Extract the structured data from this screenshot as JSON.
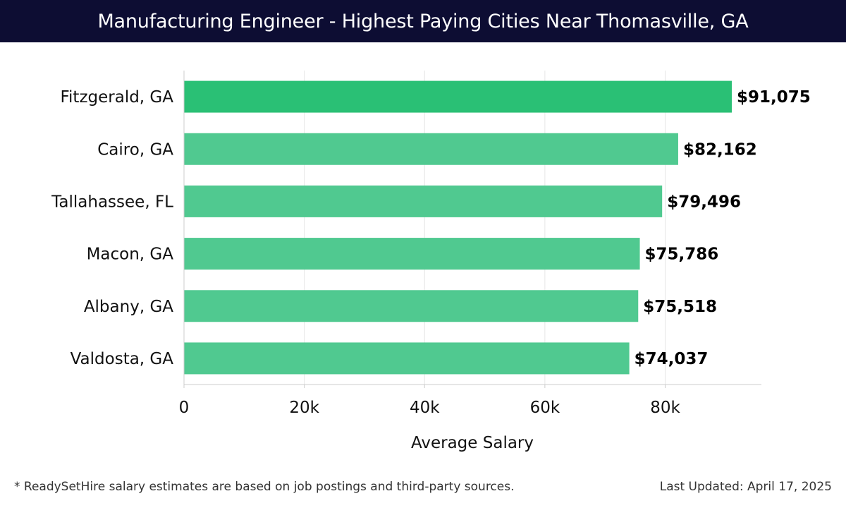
{
  "header": {
    "title": "Manufacturing Engineer - Highest Paying Cities Near Thomasville, GA"
  },
  "chart_data": {
    "type": "bar",
    "orientation": "horizontal",
    "title": "Manufacturing Engineer - Highest Paying Cities Near Thomasville, GA",
    "xlabel": "Average Salary",
    "ylabel": "",
    "categories": [
      "Fitzgerald, GA",
      "Cairo, GA",
      "Tallahassee, FL",
      "Macon, GA",
      "Albany, GA",
      "Valdosta, GA"
    ],
    "values": [
      91075,
      82162,
      79496,
      75786,
      75518,
      74037
    ],
    "value_labels": [
      "$91,075",
      "$82,162",
      "$79,496",
      "$75,786",
      "$75,518",
      "$74,037"
    ],
    "xlim": [
      0,
      96000
    ],
    "xticks": [
      0,
      20000,
      40000,
      60000,
      80000
    ],
    "xtick_labels": [
      "0",
      "20k",
      "40k",
      "60k",
      "80k"
    ],
    "grid": true,
    "legend": "none",
    "colors": {
      "top_bar": "#2ac075",
      "bar": "#50c990",
      "grid": "#e6e6e6",
      "axis": "#cccccc",
      "label": "#111111",
      "value_label": "#000000"
    }
  },
  "footer": {
    "note": "* ReadySetHire salary estimates are based on job postings and third-party sources.",
    "updated": "Last Updated: April 17, 2025"
  },
  "colors": {
    "title_bar_bg": "#0d0d33",
    "title_text": "#ffffff"
  }
}
